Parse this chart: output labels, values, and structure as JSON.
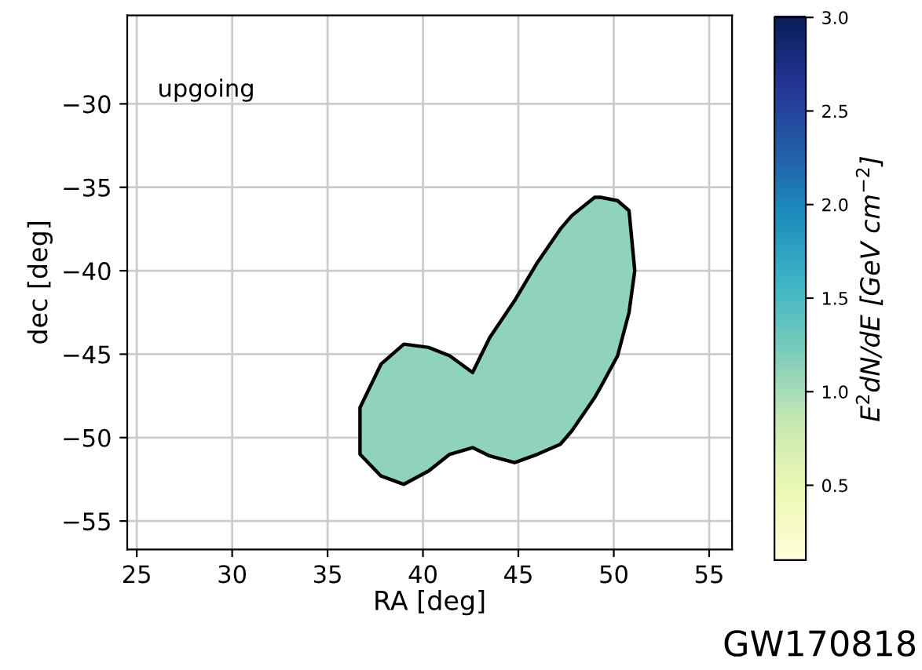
{
  "chart_data": {
    "type": "area",
    "xlabel": "RA [deg]",
    "ylabel": "dec [deg]",
    "clabel": "E$^{2}$dN/dE [GeV cm$^{−2}$]",
    "series": [
      {
        "color": "#8fd4ba",
        "x": [
          36.7,
          37.8,
          39.0,
          40.3,
          41.4,
          42.6,
          43.5,
          44.8,
          46.0,
          47.2,
          47.8,
          49.0,
          49.3,
          50.2,
          50.8,
          51.1,
          50.8,
          50.2,
          49.3,
          49.0,
          47.8,
          47.2,
          46.0,
          44.8,
          43.5,
          42.6,
          41.4,
          40.3,
          39.0,
          37.8,
          36.7
        ],
        "values": [
          -48.2,
          -45.6,
          -44.4,
          -44.6,
          -45.1,
          -46.1,
          -44.0,
          -41.8,
          -39.5,
          -37.5,
          -36.7,
          -35.6,
          -35.6,
          -35.8,
          -36.4,
          -40.0,
          -42.5,
          -45.1,
          -47.0,
          -47.6,
          -49.6,
          -50.4,
          -51.0,
          -51.5,
          -51.1,
          -50.6,
          -51.0,
          -52.0,
          -52.8,
          -52.3,
          -51.0
        ]
      }
    ],
    "xlim": [
      24.5,
      56.2
    ],
    "ylim": [
      -56.7,
      -24.7
    ],
    "xticks": [
      25,
      30,
      35,
      40,
      45,
      50,
      55
    ],
    "yticks": [
      {
        "value": -55,
        "label": "−55"
      },
      {
        "value": -50,
        "label": "−50"
      },
      {
        "value": -45,
        "label": "−45"
      },
      {
        "value": -40,
        "label": "−40"
      },
      {
        "value": -35,
        "label": "−35"
      },
      {
        "value": -30,
        "label": "−30"
      }
    ],
    "clim": [
      0.1,
      3.0
    ],
    "cticks": [
      0.5,
      {
        "value": 1,
        "label": "1.0"
      },
      1.5,
      {
        "value": 2,
        "label": "2.0"
      },
      2.5,
      {
        "value": 3,
        "label": "3.0"
      }
    ],
    "grid": true,
    "annotations": [
      "upgoing",
      "GW170818"
    ]
  }
}
